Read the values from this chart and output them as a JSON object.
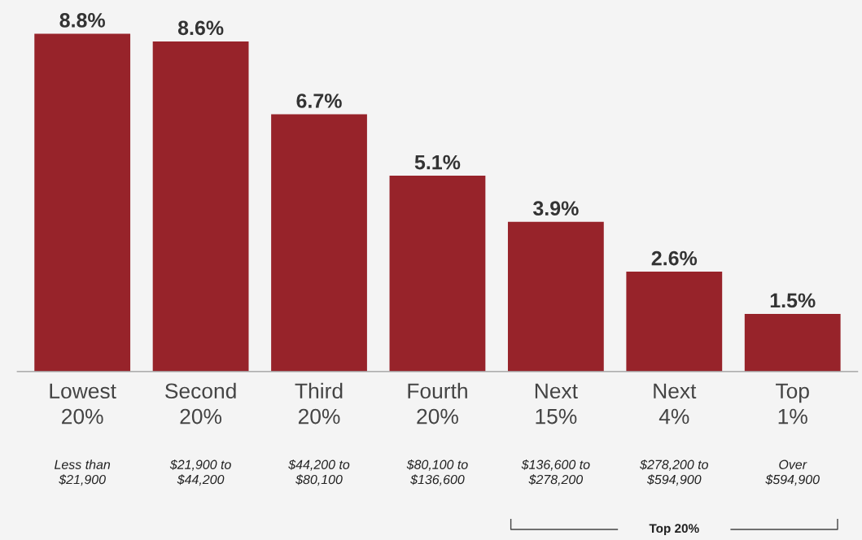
{
  "chart_data": {
    "type": "bar",
    "categories": [
      "Lowest\n20%",
      "Second\n20%",
      "Third\n20%",
      "Fourth\n20%",
      "Next\n15%",
      "Next\n4%",
      "Top\n1%"
    ],
    "values": [
      8.8,
      8.6,
      6.7,
      5.1,
      3.9,
      2.6,
      1.5
    ],
    "value_labels": [
      "8.8%",
      "8.6%",
      "6.7%",
      "5.1%",
      "3.9%",
      "2.6%",
      "1.5%"
    ],
    "color": "#97232a",
    "annotations": [
      "Less than\n$21,900",
      "$21,900 to\n$44,200",
      "$44,200 to\n$80,100",
      "$80,100 to\n$136,600",
      "$136,600 to\n$278,200",
      "$278,200 to\n$594,900",
      "Over\n$594,900",
      "Top 20%"
    ],
    "grid": false,
    "legend": false
  }
}
